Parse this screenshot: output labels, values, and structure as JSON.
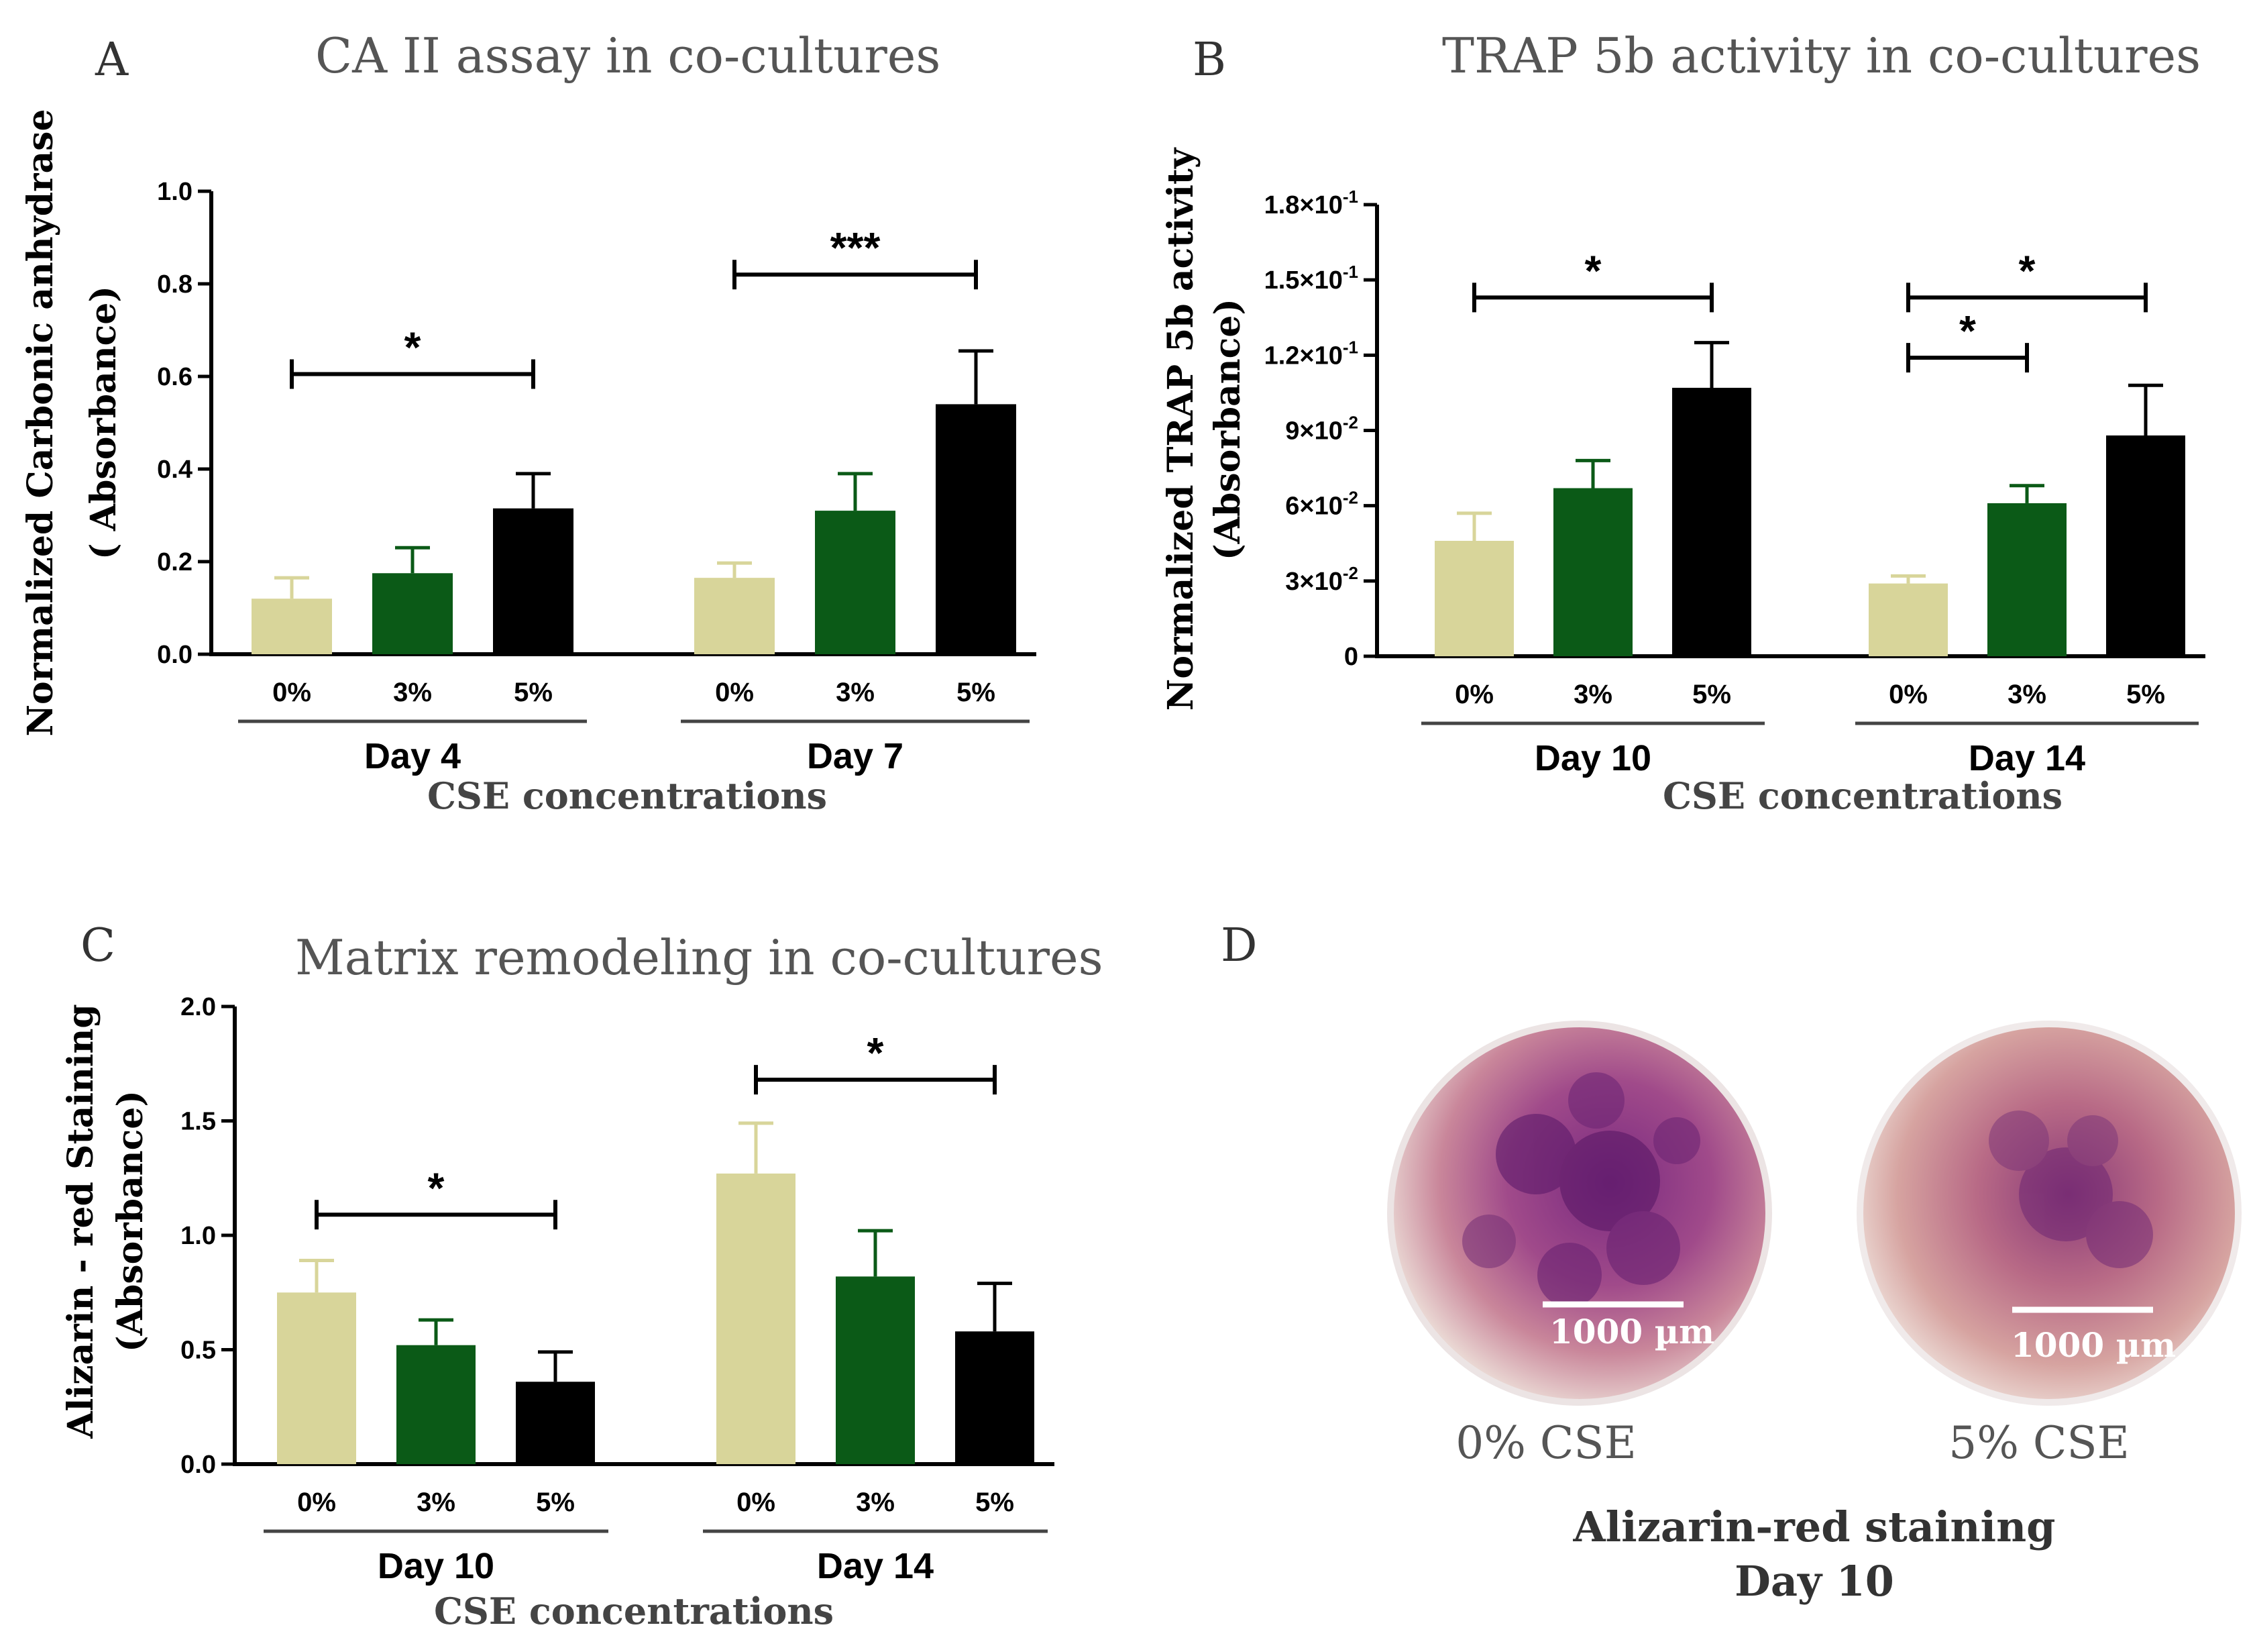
{
  "panels": {
    "A": {
      "label": "A",
      "title": "CA II assay in co-cultures"
    },
    "B": {
      "label": "B",
      "title": "TRAP 5b activity in co-cultures"
    },
    "C": {
      "label": "C",
      "title": "Matrix remodeling in co-cultures"
    },
    "D": {
      "label": "D"
    }
  },
  "colors": {
    "0%": "#d8d59a",
    "3%": "#0b5a17",
    "5%": "#000000",
    "err_0": "#d8d59a",
    "err_3": "#0b5a17",
    "err_5": "#000000"
  },
  "chart_data": [
    {
      "id": "A",
      "type": "bar",
      "title": "CA II assay in co-cultures",
      "ylabel_lines": [
        "Normalized Carbonic anhydrase",
        "( Absorbance)"
      ],
      "xlabel": "CSE concentrations",
      "ylim": [
        0,
        1.0
      ],
      "yticks": [
        0.0,
        0.2,
        0.4,
        0.6,
        0.8,
        1.0
      ],
      "ytick_labels": [
        "0.0",
        "0.2",
        "0.4",
        "0.6",
        "0.8",
        "1.0"
      ],
      "categories": [
        "0%",
        "3%",
        "5%"
      ],
      "groups": [
        {
          "name": "Day 4",
          "values": [
            0.12,
            0.175,
            0.315
          ],
          "errors": [
            0.045,
            0.055,
            0.075
          ],
          "sig": [
            {
              "from": 0,
              "to": 2,
              "label": "*",
              "y": 0.605
            }
          ]
        },
        {
          "name": "Day 7",
          "values": [
            0.165,
            0.31,
            0.54
          ],
          "errors": [
            0.032,
            0.08,
            0.115
          ],
          "sig": [
            {
              "from": 0,
              "to": 2,
              "label": "***",
              "y": 0.82
            }
          ]
        }
      ]
    },
    {
      "id": "B",
      "type": "bar",
      "title": "TRAP 5b activity in co-cultures",
      "ylabel_lines": [
        "Normalized TRAP 5b activity",
        "(Absorbance)"
      ],
      "xlabel": "CSE concentrations",
      "ylim": [
        0,
        0.18
      ],
      "yticks": [
        0,
        0.03,
        0.06,
        0.09,
        0.12,
        0.15,
        0.18
      ],
      "ytick_labels": [
        {
          "m": "0",
          "e": ""
        },
        {
          "m": "3×10",
          "e": "-2"
        },
        {
          "m": "6×10",
          "e": "-2"
        },
        {
          "m": "9×10",
          "e": "-2"
        },
        {
          "m": "1.2×10",
          "e": "-1"
        },
        {
          "m": "1.5×10",
          "e": "-1"
        },
        {
          "m": "1.8×10",
          "e": "-1"
        }
      ],
      "categories": [
        "0%",
        "3%",
        "5%"
      ],
      "groups": [
        {
          "name": "Day 10",
          "values": [
            0.046,
            0.067,
            0.107
          ],
          "errors": [
            0.011,
            0.011,
            0.018
          ],
          "sig": [
            {
              "from": 0,
              "to": 2,
              "label": "*",
              "y": 0.143
            }
          ]
        },
        {
          "name": "Day 14",
          "values": [
            0.029,
            0.061,
            0.088
          ],
          "errors": [
            0.003,
            0.007,
            0.02
          ],
          "sig": [
            {
              "from": 0,
              "to": 2,
              "label": "*",
              "y": 0.143
            },
            {
              "from": 0,
              "to": 1,
              "label": "*",
              "y": 0.119
            }
          ]
        }
      ]
    },
    {
      "id": "C",
      "type": "bar",
      "title": "Matrix remodeling in co-cultures",
      "ylabel_lines": [
        "Alizarin - red Staining",
        "(Absorbance)"
      ],
      "xlabel": "CSE concentrations",
      "ylim": [
        0,
        2.0
      ],
      "yticks": [
        0.0,
        0.5,
        1.0,
        1.5,
        2.0
      ],
      "ytick_labels": [
        "0.0",
        "0.5",
        "1.0",
        "1.5",
        "2.0"
      ],
      "categories": [
        "0%",
        "3%",
        "5%"
      ],
      "groups": [
        {
          "name": "Day 10",
          "values": [
            0.75,
            0.52,
            0.36
          ],
          "errors": [
            0.14,
            0.11,
            0.13
          ],
          "sig": [
            {
              "from": 0,
              "to": 2,
              "label": "*",
              "y": 1.09
            }
          ]
        },
        {
          "name": "Day 14",
          "values": [
            1.27,
            0.82,
            0.58
          ],
          "errors": [
            0.22,
            0.2,
            0.21
          ],
          "sig": [
            {
              "from": 0,
              "to": 2,
              "label": "*",
              "y": 1.68
            }
          ]
        }
      ]
    }
  ],
  "panel_d": {
    "images": [
      {
        "caption": "0% CSE",
        "scale_label": "1000 µm"
      },
      {
        "caption": "5% CSE",
        "scale_label": "1000 µm"
      }
    ],
    "caption_lines": [
      "Alizarin-red staining",
      "Day 10"
    ]
  }
}
